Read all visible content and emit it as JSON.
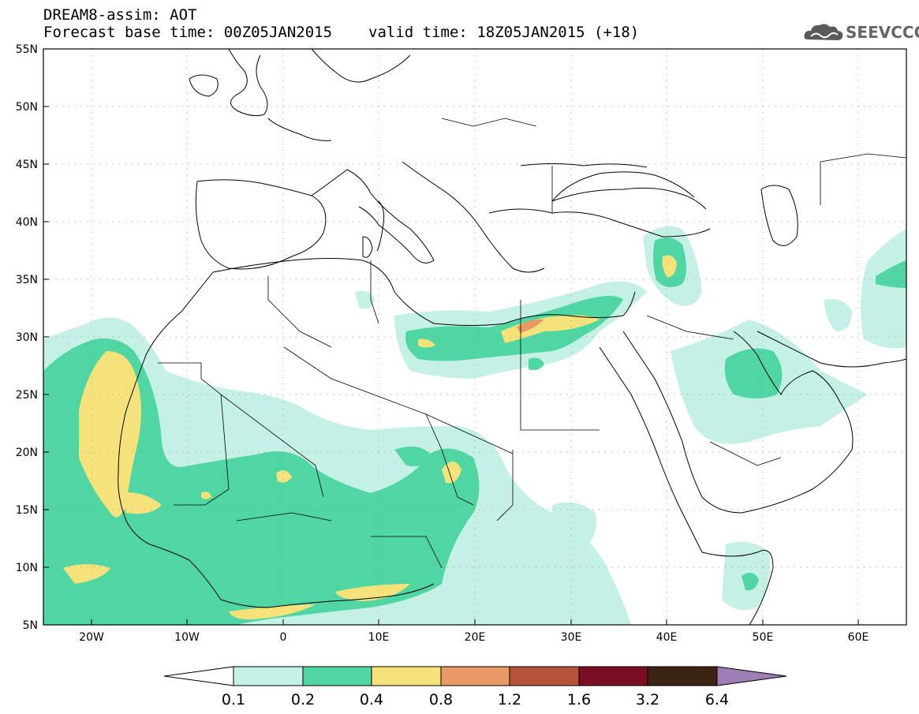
{
  "title": {
    "line1": "DREAM8-assim: AOT",
    "base_time": "Forecast base time: 00Z05JAN2015",
    "valid_time": "valid time: 18Z05JAN2015 (+18)"
  },
  "logo": {
    "text": "SEEVCCC",
    "icon": "cloud-logo-icon"
  },
  "map": {
    "lat_ticks": [
      "55N",
      "50N",
      "45N",
      "40N",
      "35N",
      "30N",
      "25N",
      "20N",
      "15N",
      "10N",
      "5N"
    ],
    "lon_ticks": [
      "20W",
      "10W",
      "0",
      "10E",
      "20E",
      "30E",
      "40E",
      "50E",
      "60E"
    ],
    "lat_range": [
      5,
      55
    ],
    "lon_range": [
      -25,
      65
    ]
  },
  "colorbar": {
    "labels": [
      "0.1",
      "0.2",
      "0.4",
      "0.8",
      "1.2",
      "1.6",
      "3.2",
      "6.4"
    ],
    "colors": [
      "#ffffff",
      "#c4f0e6",
      "#4fd6a3",
      "#f5e27a",
      "#e99966",
      "#b4533a",
      "#7a0f24",
      "#3b2414",
      "#9d7fb5"
    ]
  }
}
